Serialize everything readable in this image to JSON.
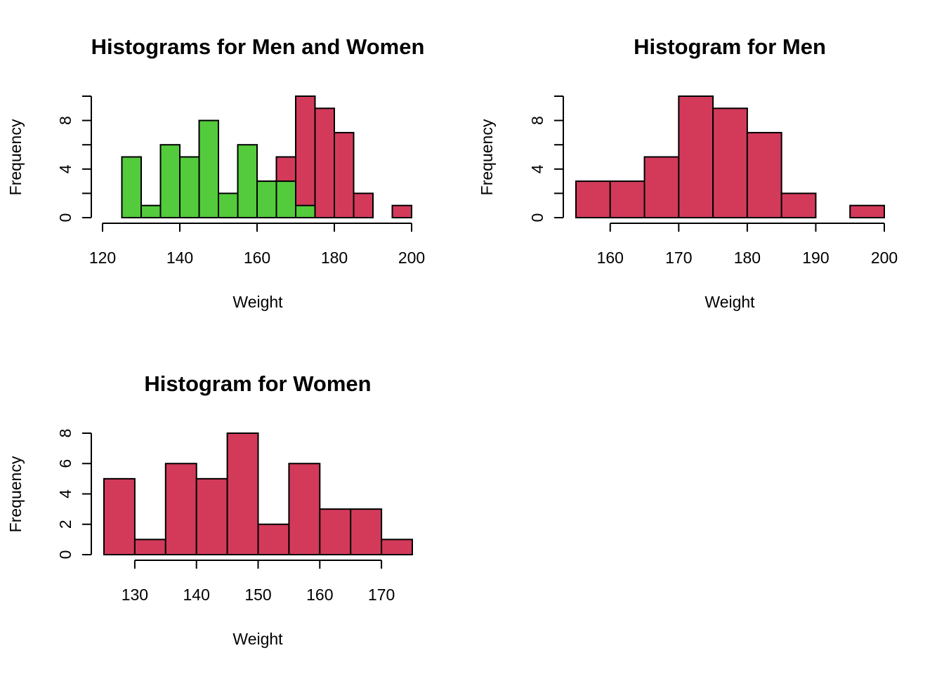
{
  "colors": {
    "men": "#D33A5A",
    "women": "#53CB3C",
    "outline": "#000000"
  },
  "chart_data": [
    {
      "type": "bar",
      "title": "Histograms for Men and Women",
      "xlabel": "Weight",
      "ylabel": "Frequency",
      "xlim": [
        120,
        200
      ],
      "ylim": [
        0,
        10
      ],
      "xticks": [
        120,
        140,
        160,
        180,
        200
      ],
      "yticks": [
        0,
        4,
        8
      ],
      "yminor": [
        2,
        6,
        10
      ],
      "series": [
        {
          "color": "men",
          "bins": [
            [
              155,
              160,
              3
            ],
            [
              160,
              165,
              3
            ],
            [
              165,
              170,
              5
            ],
            [
              170,
              175,
              10
            ],
            [
              175,
              180,
              9
            ],
            [
              180,
              185,
              7
            ],
            [
              185,
              190,
              2
            ],
            [
              190,
              195,
              0
            ],
            [
              195,
              200,
              1
            ]
          ]
        },
        {
          "color": "women",
          "bins": [
            [
              125,
              130,
              5
            ],
            [
              130,
              135,
              1
            ],
            [
              135,
              140,
              6
            ],
            [
              140,
              145,
              5
            ],
            [
              145,
              150,
              8
            ],
            [
              150,
              155,
              2
            ],
            [
              155,
              160,
              6
            ],
            [
              160,
              165,
              3
            ],
            [
              165,
              170,
              3
            ],
            [
              170,
              175,
              1
            ]
          ]
        }
      ]
    },
    {
      "type": "bar",
      "title": "Histogram for Men",
      "xlabel": "Weight",
      "ylabel": "Frequency",
      "xlim": [
        155,
        200
      ],
      "ylim": [
        0,
        10
      ],
      "xticks": [
        160,
        170,
        180,
        190,
        200
      ],
      "yticks": [
        0,
        4,
        8
      ],
      "yminor": [
        2,
        6,
        10
      ],
      "series": [
        {
          "color": "men",
          "bins": [
            [
              155,
              160,
              3
            ],
            [
              160,
              165,
              3
            ],
            [
              165,
              170,
              5
            ],
            [
              170,
              175,
              10
            ],
            [
              175,
              180,
              9
            ],
            [
              180,
              185,
              7
            ],
            [
              185,
              190,
              2
            ],
            [
              190,
              195,
              0
            ],
            [
              195,
              200,
              1
            ]
          ]
        }
      ]
    },
    {
      "type": "bar",
      "title": "Histogram for Women",
      "xlabel": "Weight",
      "ylabel": "Frequency",
      "xlim": [
        125,
        175
      ],
      "ylim": [
        0,
        8
      ],
      "xticks": [
        130,
        140,
        150,
        160,
        170
      ],
      "yticks": [
        0,
        2,
        4,
        6,
        8
      ],
      "yminor": [],
      "series": [
        {
          "color": "men",
          "bins": [
            [
              125,
              130,
              5
            ],
            [
              130,
              135,
              1
            ],
            [
              135,
              140,
              6
            ],
            [
              140,
              145,
              5
            ],
            [
              145,
              150,
              8
            ],
            [
              150,
              155,
              2
            ],
            [
              155,
              160,
              6
            ],
            [
              160,
              165,
              3
            ],
            [
              165,
              170,
              3
            ],
            [
              170,
              175,
              1
            ]
          ]
        }
      ]
    }
  ]
}
